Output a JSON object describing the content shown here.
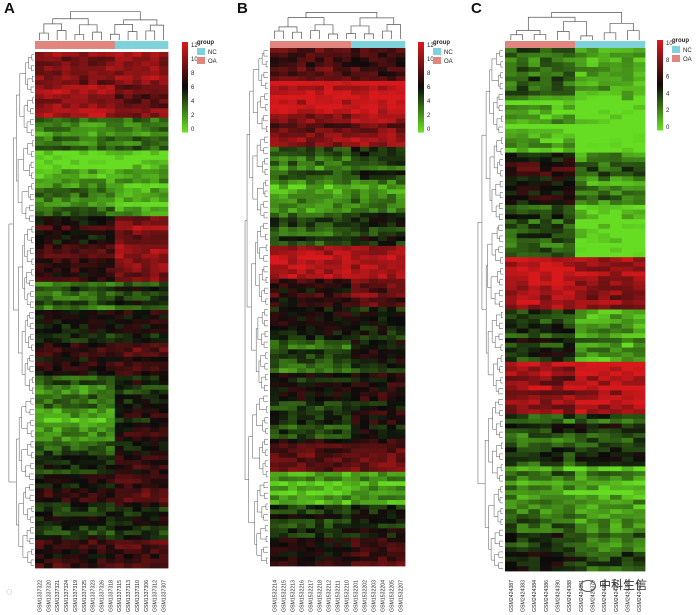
{
  "panels": [
    {
      "letter": "A",
      "legend": {
        "title": "group",
        "items": [
          "NC",
          "OA"
        ],
        "ticks": [
          "12",
          "10",
          "8",
          "6",
          "4",
          "2",
          "0"
        ],
        "max": 12
      },
      "group_split": [
        9,
        6
      ],
      "samples": [
        "GSM1337322",
        "GSM1337320",
        "GSM1337321",
        "GSM1337324",
        "GSM1337319",
        "GSM1337325",
        "GSM1337323",
        "GSM1337326",
        "GSM1337318",
        "GSM1337315",
        "GSM1337313",
        "GSM1337310",
        "GSM1337306",
        "GSM1337312",
        "GSM1337307"
      ],
      "block_levels": [
        9.5,
        10.5,
        2.5,
        0.8,
        2.8,
        6.5,
        7.2,
        3.8,
        5.8,
        6.8,
        3.2,
        1.8,
        4.5,
        6.2,
        5.2,
        6.8
      ],
      "block_shift": [
        0.8,
        -1.5,
        0.3,
        0.6,
        -1.8,
        3.0,
        2.5,
        1.2,
        0.6,
        1.0,
        2.2,
        4.5,
        2.0,
        1.4,
        0.2,
        0.8
      ]
    },
    {
      "letter": "B",
      "legend": {
        "title": "group",
        "items": [
          "NC",
          "OA"
        ],
        "ticks": [
          "12",
          "10",
          "8",
          "6",
          "4",
          "2",
          "0"
        ],
        "max": 12
      },
      "group_split": [
        9,
        6
      ],
      "samples": [
        "GSM1532214",
        "GSM1532215",
        "GSM1532213",
        "GSM1532216",
        "GSM1532217",
        "GSM1532218",
        "GSM1532212",
        "GSM1532211",
        "GSM1532210",
        "GSM1532201",
        "GSM1532202",
        "GSM1532203",
        "GSM1532204",
        "GSM1532205",
        "GSM1532207"
      ],
      "block_levels": [
        8.0,
        11.8,
        9.0,
        3.0,
        1.8,
        4.0,
        10.5,
        6.8,
        6.0,
        3.5,
        5.5,
        4.5,
        7.5,
        1.5,
        5.0,
        7.2
      ],
      "block_shift": [
        -0.5,
        0.0,
        0.8,
        1.2,
        0.5,
        1.2,
        -0.4,
        1.8,
        -0.6,
        2.0,
        0.6,
        1.5,
        0.5,
        0.6,
        0.7,
        1.2
      ]
    },
    {
      "letter": "C",
      "legend": {
        "title": "group",
        "items": [
          "NC",
          "OA"
        ],
        "ticks": [
          "10",
          "8",
          "6",
          "4",
          "2",
          "0"
        ],
        "max": 10
      },
      "group_split": [
        6,
        6
      ],
      "samples": [
        "GSM2424387",
        "GSM2424383",
        "GSM2424384",
        "GSM2424386",
        "GSM2424390",
        "GSM2424388",
        "GSM2424381",
        "GSM2424379",
        "GSM2424382",
        "GSM2424380",
        "GSM2424385",
        "GSM2424389"
      ],
      "block_levels": [
        3.0,
        0.8,
        5.5,
        3.5,
        9.0,
        4.5,
        8.5,
        3.2,
        2.0,
        4.0
      ],
      "block_shift": [
        -1.5,
        -1.5,
        -3.0,
        -3.5,
        -0.8,
        -2.5,
        1.0,
        0.5,
        -0.8,
        -1.2
      ]
    }
  ],
  "colors": {
    "high": "#d7191c",
    "mid": "#0b0b0b",
    "low": "#66dd22",
    "nc": "#7dd3d9",
    "oa": "#e0867f"
  },
  "watermark": {
    "text": "中科生信"
  }
}
